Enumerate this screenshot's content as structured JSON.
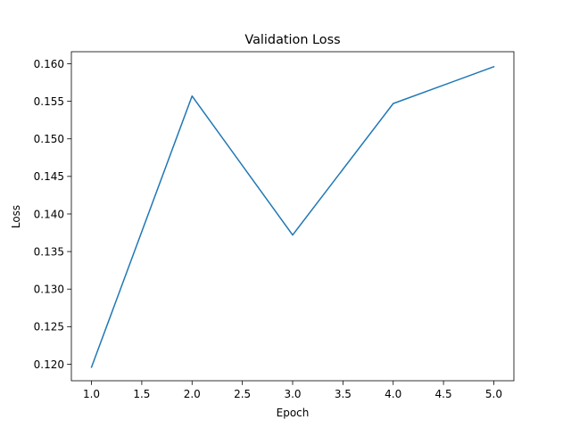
{
  "chart_data": {
    "type": "line",
    "title": "Validation Loss",
    "xlabel": "Epoch",
    "ylabel": "Loss",
    "xlim": [
      0.8,
      5.2
    ],
    "ylim": [
      0.1178,
      0.1616
    ],
    "x_ticks": [
      1.0,
      1.5,
      2.0,
      2.5,
      3.0,
      3.5,
      4.0,
      4.5,
      5.0
    ],
    "x_tick_labels": [
      "1.0",
      "1.5",
      "2.0",
      "2.5",
      "3.0",
      "3.5",
      "4.0",
      "4.5",
      "5.0"
    ],
    "y_ticks": [
      0.12,
      0.125,
      0.13,
      0.135,
      0.14,
      0.145,
      0.15,
      0.155,
      0.16
    ],
    "y_tick_labels": [
      "0.120",
      "0.125",
      "0.130",
      "0.135",
      "0.140",
      "0.145",
      "0.150",
      "0.155",
      "0.160"
    ],
    "grid": false,
    "legend": "none",
    "series": [
      {
        "color": "#1f77b4",
        "x": [
          1,
          2,
          3,
          4,
          5
        ],
        "values": [
          0.1196,
          0.1557,
          0.1372,
          0.1547,
          0.1596
        ]
      }
    ]
  }
}
